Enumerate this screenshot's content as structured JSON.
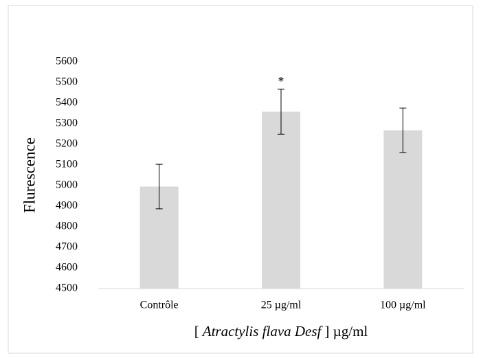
{
  "chart_data": {
    "type": "bar",
    "y_label": "Flurescence",
    "x_label": {
      "prefix": "[",
      "italic": "Atractylis flava Desf",
      "suffix": "] µg/ml"
    },
    "categories": [
      "Contrôle",
      "25 µg/ml",
      "100 µg/ml"
    ],
    "values": [
      4995,
      5358,
      5268
    ],
    "errors": [
      108,
      109,
      108
    ],
    "annotations": [
      null,
      "*",
      null
    ],
    "color": "#d9d9d9",
    "ylim": [
      4500,
      5600
    ],
    "yticks": [
      4500,
      4600,
      4700,
      4800,
      4900,
      5000,
      5100,
      5200,
      5300,
      5400,
      5500,
      5600
    ],
    "grid": false
  }
}
